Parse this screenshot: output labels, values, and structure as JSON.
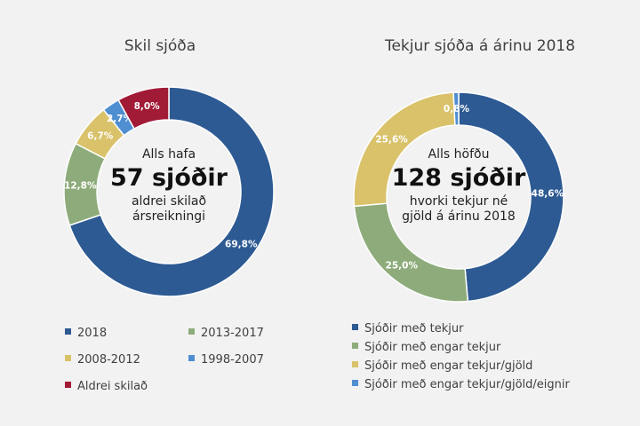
{
  "chart_data": [
    {
      "type": "donut",
      "title": "Skil sjóða",
      "center": {
        "line1": "Alls hafa",
        "big": "57 sjóðir",
        "line2": "aldrei skilað",
        "line3": "ársreikningi"
      },
      "slices": [
        {
          "label": "2018",
          "value": 69.8,
          "display": "69,8%",
          "color": "#2e5a93"
        },
        {
          "label": "2013-2017",
          "value": 12.8,
          "display": "12,8%",
          "color": "#8eac7b"
        },
        {
          "label": "2008-2012",
          "value": 6.7,
          "display": "6,7%",
          "color": "#d9c26a"
        },
        {
          "label": "1998-2007",
          "value": 2.7,
          "display": "2,7%",
          "color": "#4f8ed0"
        },
        {
          "label": "Aldrei skilað",
          "value": 8.0,
          "display": "8,0%",
          "color": "#a11a36"
        }
      ]
    },
    {
      "type": "donut",
      "title": "Tekjur sjóða á árinu 2018",
      "center": {
        "line1": "Alls höfðu",
        "big": "128 sjóðir",
        "line2": "hvorki tekjur né",
        "line3": "gjöld á árinu 2018"
      },
      "slices": [
        {
          "label": "Sjóðir með tekjur",
          "value": 48.6,
          "display": "48,6%",
          "color": "#2e5a93"
        },
        {
          "label": "Sjóðir með engar tekjur",
          "value": 25.0,
          "display": "25,0%",
          "color": "#8eac7b"
        },
        {
          "label": "Sjóðir með engar tekjur/gjöld",
          "value": 25.6,
          "display": "25,6%",
          "color": "#d9c26a"
        },
        {
          "label": "Sjóðir með engar tekjur/gjöld/eignir",
          "value": 0.8,
          "display": "0,8%",
          "color": "#4f8ed0"
        }
      ]
    }
  ]
}
